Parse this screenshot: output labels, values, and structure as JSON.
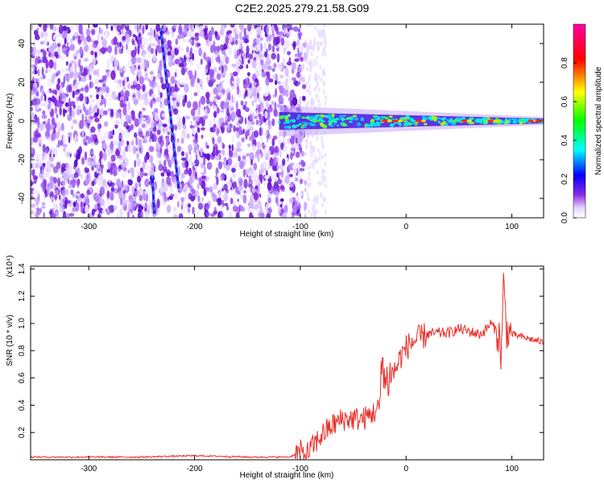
{
  "title": "C2E2.2025.279.21.58.G09",
  "chart_data": [
    {
      "type": "heatmap",
      "title": "C2E2.2025.279.21.58.G09",
      "xlabel": "Height of straight line (km)",
      "ylabel": "Frequency (Hz)",
      "xlim": [
        -355,
        130
      ],
      "ylim": [
        -50,
        50
      ],
      "xticks": [
        -300,
        -200,
        -100,
        0,
        100
      ],
      "yticks": [
        -40,
        -20,
        0,
        20,
        40
      ],
      "noise_region_x": [
        -355,
        -95
      ],
      "signal_region_x": [
        -120,
        130
      ],
      "signal_center_hz": 0,
      "streaks": [
        {
          "x": [
            -232,
            -215
          ],
          "y": [
            48,
            -35
          ]
        },
        {
          "x": [
            -240,
            -238
          ],
          "y": [
            -28,
            -48
          ]
        }
      ],
      "colorbar": {
        "label": "Normalized spectral amplitude",
        "range": [
          0.0,
          1.0
        ],
        "ticks": [
          "0.0",
          "0.2",
          "0.4",
          "0.6",
          "0.8"
        ],
        "colors": [
          "#ffffff",
          "#e6d8ff",
          "#8a2be2",
          "#0000ff",
          "#00ffff",
          "#00ff00",
          "#ffff00",
          "#ff0000",
          "#ff00a0"
        ]
      }
    },
    {
      "type": "line",
      "xlabel": "Height of straight line (km)",
      "ylabel": "SNR (10 * v/v)",
      "y_multiplier": "(x10⁴)",
      "xlim": [
        -355,
        130
      ],
      "ylim": [
        0,
        1.42
      ],
      "xticks": [
        -300,
        -200,
        -100,
        0,
        100
      ],
      "yticks": [
        0.2,
        0.4,
        0.6,
        0.8,
        1.0,
        1.2,
        1.4
      ],
      "series": [
        {
          "name": "SNR",
          "color": "#e8302a",
          "x": [
            -355,
            -300,
            -250,
            -200,
            -150,
            -110,
            -100,
            -95,
            -90,
            -80,
            -70,
            -60,
            -50,
            -40,
            -30,
            -25,
            -22,
            -20,
            -15,
            -10,
            -5,
            0,
            5,
            10,
            20,
            30,
            40,
            50,
            60,
            70,
            75,
            80,
            85,
            88,
            90,
            92,
            95,
            100,
            110,
            120,
            130
          ],
          "values": [
            0.02,
            0.02,
            0.02,
            0.03,
            0.02,
            0.02,
            0.06,
            0.03,
            0.08,
            0.18,
            0.25,
            0.3,
            0.3,
            0.3,
            0.35,
            0.38,
            0.8,
            0.55,
            0.62,
            0.66,
            0.76,
            0.82,
            0.86,
            0.88,
            0.92,
            0.93,
            0.93,
            0.96,
            0.94,
            0.92,
            0.95,
            1.0,
            0.95,
            0.9,
            0.75,
            1.3,
            0.95,
            0.92,
            0.9,
            0.88,
            0.86
          ]
        }
      ]
    }
  ]
}
